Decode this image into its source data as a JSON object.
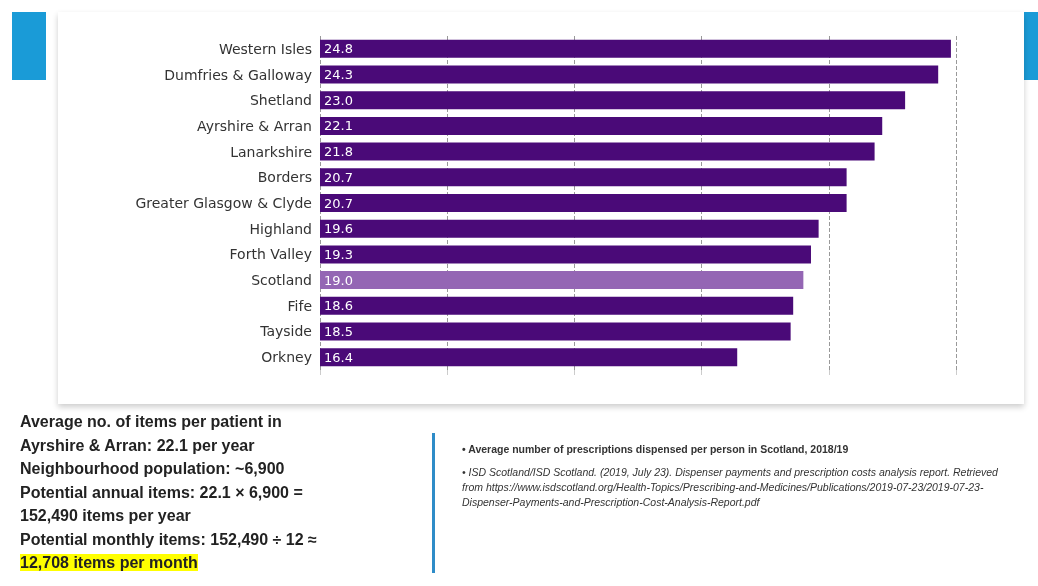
{
  "chart_data": {
    "type": "bar",
    "orientation": "horizontal",
    "categories": [
      "Western Isles",
      "Dumfries & Galloway",
      "Shetland",
      "Ayrshire & Arran",
      "Lanarkshire",
      "Borders",
      "Greater Glasgow & Clyde",
      "Highland",
      "Forth Valley",
      "Scotland",
      "Fife",
      "Tayside",
      "Orkney"
    ],
    "values": [
      24.8,
      24.3,
      23.0,
      22.1,
      21.8,
      20.7,
      20.7,
      19.6,
      19.3,
      19.0,
      18.6,
      18.5,
      16.4
    ],
    "colors": [
      "#4a0a78",
      "#4a0a78",
      "#4a0a78",
      "#4a0a78",
      "#4a0a78",
      "#4a0a78",
      "#4a0a78",
      "#4a0a78",
      "#4a0a78",
      "#9466b4",
      "#4a0a78",
      "#4a0a78",
      "#4a0a78"
    ],
    "value_labels": [
      "24.8",
      "24.3",
      "23.0",
      "22.1",
      "21.8",
      "20.7",
      "20.7",
      "19.6",
      "19.3",
      "19.0",
      "18.6",
      "18.5",
      "16.4"
    ],
    "xlim": [
      0,
      25
    ],
    "xticks": [
      {
        "value": 0,
        "label": null
      },
      {
        "value": 5,
        "label": null
      },
      {
        "value": 10,
        "label": null
      },
      {
        "value": 15,
        "label": null
      },
      {
        "value": 20,
        "label": null
      },
      {
        "value": 25,
        "label": null
      }
    ],
    "tick_labels": "y",
    "grid": "x",
    "annotations": [
      "Average no. of items per patient in",
      "Ayrshire & Arran: 22.1 per year",
      "Neighbourhood population: ~6,900",
      "Potential annual items: 22.1 × 6,900 =",
      "152,490 items per year",
      "Potential monthly items: 152,490 ÷ 12 ≈",
      "12,708 items per month",
      "•   Average number of prescriptions dispensed per person in Scotland, 2018/19",
      "•   ISD Scotland/ISD Scotland. (2019, July 23). Dispenser payments and prescription costs analysis report. Retrieved from https://www.isdscotland.org/Health-Topics/Prescribing-and-Medicines/Publications/2019-07-23/2019-07-23-Dispenser-Payments-and-Prescription-Cost-Analysis-Report.pdf"
    ]
  }
}
